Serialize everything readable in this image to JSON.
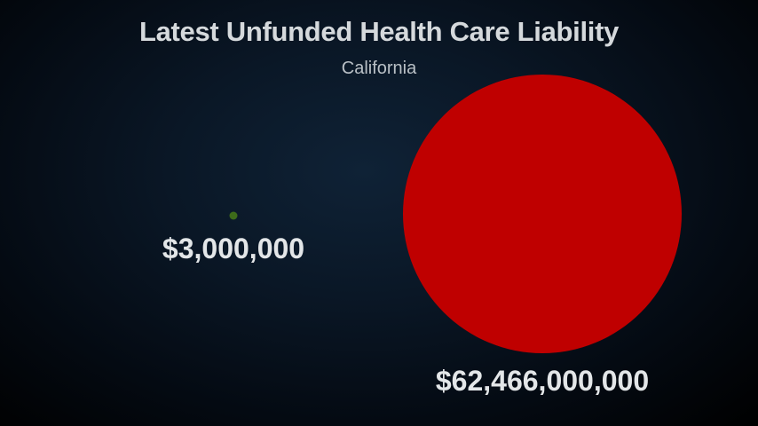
{
  "chart_data": {
    "type": "bubble",
    "title": "Latest Unfunded Health Care Liability",
    "subtitle": "California",
    "values": [
      3000000,
      62466000000
    ],
    "labels": [
      "$3,000,000",
      "$62,466,000,000"
    ],
    "colors": [
      "#3d6b1a",
      "#bf0000"
    ]
  }
}
